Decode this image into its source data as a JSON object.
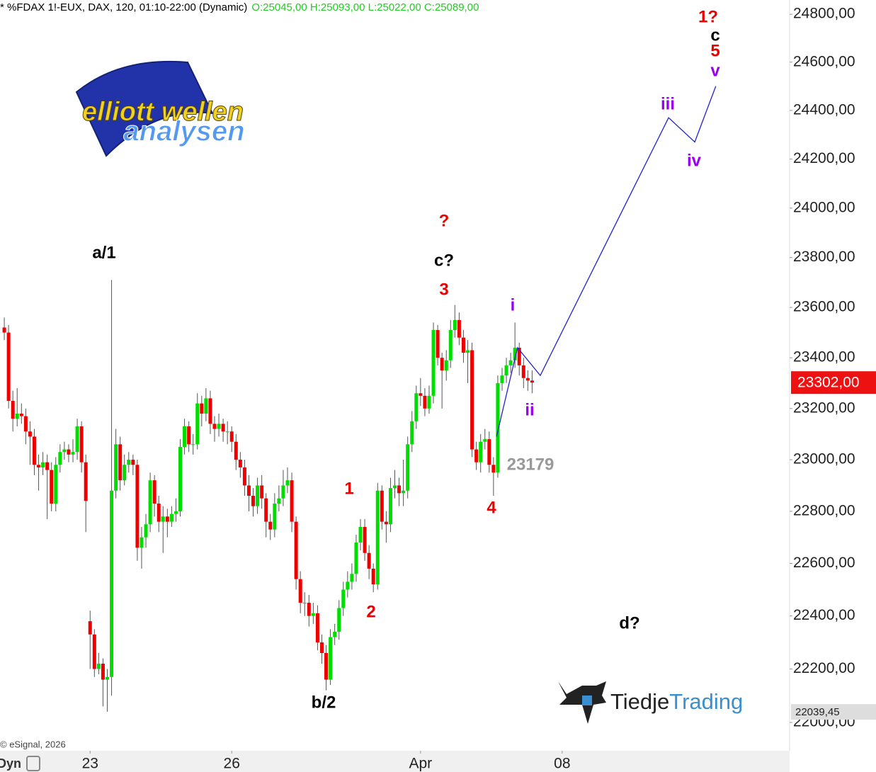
{
  "chart_data": {
    "type": "candlestick",
    "header": "* %FDAX 1!-EUX, DAX, 120, 01:10-22:00 (Dynamic)",
    "ohlc_text": "O:25045,00 H:25093,00 L:25022,00 C:25089,00",
    "source": "© eSignal, 2026",
    "mode": "Dyn",
    "log_scale": true,
    "up_color": "#00dd00",
    "down_color": "#ee0000",
    "xlim": [
      -1,
      183
    ],
    "xticks": [
      {
        "value": 20,
        "label": "23"
      },
      {
        "value": 53,
        "label": "26"
      },
      {
        "value": 97,
        "label": "Apr"
      },
      {
        "value": 130,
        "label": "08"
      }
    ],
    "ylim": [
      21895,
      24860
    ],
    "yticks": [
      {
        "value": 22000,
        "label": "22000,00"
      },
      {
        "value": 22200,
        "label": "22200,00"
      },
      {
        "value": 22400,
        "label": "22400,00"
      },
      {
        "value": 22600,
        "label": "22600,00"
      },
      {
        "value": 22800,
        "label": "22800,00"
      },
      {
        "value": 23000,
        "label": "23000,00"
      },
      {
        "value": 23200,
        "label": "23200,00"
      },
      {
        "value": 23400,
        "label": "23400,00"
      },
      {
        "value": 23600,
        "label": "23600,00"
      },
      {
        "value": 23800,
        "label": "23800,00"
      },
      {
        "value": 24000,
        "label": "24000,00"
      },
      {
        "value": 24200,
        "label": "24200,00"
      },
      {
        "value": 24400,
        "label": "24400,00"
      },
      {
        "value": 24600,
        "label": "24600,00"
      },
      {
        "value": 24800,
        "label": "24800,00"
      }
    ],
    "open": [
      23520,
      23500,
      23230,
      23160,
      23180,
      23170,
      23110,
      23090,
      22980,
      22970,
      22990,
      22960,
      22830,
      22980,
      23030,
      23040,
      23020,
      23030,
      23130,
      22990,
      22380,
      22330,
      22200,
      22220,
      22160,
      22170,
      22880,
      23060,
      22920,
      22980,
      23000,
      22980,
      22660,
      22700,
      22750,
      22920,
      22830,
      22760,
      22780,
      22760,
      22790,
      22800,
      23050,
      23130,
      23060,
      23060,
      23220,
      23180,
      23240,
      23140,
      23120,
      23140,
      23110,
      23110,
      23070,
      23000,
      22970,
      22900,
      22860,
      22820,
      22900,
      22850,
      22760,
      22730,
      22830,
      22850,
      22900,
      22920,
      22760,
      22540,
      22450,
      22450,
      22400,
      22410,
      22300,
      22260,
      22160,
      22320,
      22340,
      22430,
      22500,
      22530,
      22560,
      22680,
      22740,
      22640,
      22580,
      22520,
      22880,
      22760,
      22750,
      22890,
      22900,
      22870,
      22880,
      23060,
      23150,
      23260,
      23250,
      23200,
      23250,
      23510,
      23400,
      23350,
      23390,
      23510,
      23550,
      23480,
      23420,
      23430,
      23040,
      22990,
      23070,
      23080,
      22980,
      22950,
      23300,
      23330,
      23370,
      23390,
      23440,
      23370,
      23320,
      23310
    ],
    "high": [
      23560,
      23530,
      23270,
      23280,
      23220,
      23200,
      23150,
      23120,
      23020,
      23030,
      23020,
      22990,
      23010,
      23060,
      23070,
      23060,
      23080,
      23160,
      23150,
      23020,
      22420,
      22350,
      22260,
      22240,
      22200,
      23710,
      23120,
      23090,
      23020,
      23030,
      23020,
      23000,
      22740,
      22790,
      22950,
      22940,
      22860,
      22820,
      22810,
      22820,
      22850,
      23080,
      23160,
      23150,
      23100,
      23260,
      23250,
      23280,
      23270,
      23170,
      23180,
      23160,
      23150,
      23130,
      23100,
      23030,
      23000,
      22940,
      22890,
      22930,
      22940,
      22870,
      22790,
      22870,
      22900,
      22960,
      22970,
      22950,
      22780,
      22570,
      22490,
      22480,
      22450,
      22440,
      22330,
      22290,
      22350,
      22370,
      22460,
      22530,
      22570,
      22600,
      22710,
      22770,
      22770,
      22670,
      22600,
      22910,
      22900,
      22800,
      22930,
      22960,
      22930,
      23000,
      23090,
      23190,
      23290,
      23320,
      23280,
      23290,
      23540,
      23530,
      23420,
      23430,
      23550,
      23610,
      23580,
      23510,
      23470,
      23460,
      23070,
      23100,
      23120,
      23110,
      23010,
      23330,
      23360,
      23400,
      23420,
      23540,
      23460,
      23400,
      23350,
      23350
    ],
    "low": [
      23470,
      23200,
      23110,
      23130,
      23140,
      23060,
      22980,
      22940,
      22880,
      22940,
      22770,
      22800,
      22800,
      22950,
      23000,
      22990,
      22990,
      23000,
      22950,
      22720,
      22200,
      22170,
      22180,
      22060,
      22040,
      22100,
      22850,
      22880,
      22900,
      22950,
      22940,
      22610,
      22580,
      22660,
      22720,
      22780,
      22720,
      22640,
      22700,
      22740,
      22760,
      22780,
      23020,
      23030,
      23020,
      23040,
      23130,
      23150,
      23100,
      23070,
      23090,
      23070,
      23060,
      23030,
      22960,
      22930,
      22860,
      22800,
      22780,
      22790,
      22810,
      22700,
      22690,
      22700,
      22800,
      22820,
      22870,
      22720,
      22500,
      22410,
      22400,
      22360,
      22370,
      22270,
      22220,
      22120,
      22140,
      22290,
      22310,
      22400,
      22470,
      22500,
      22530,
      22650,
      22610,
      22540,
      22490,
      22500,
      22730,
      22680,
      22720,
      22850,
      22820,
      22820,
      22850,
      23030,
      23120,
      23210,
      23170,
      23180,
      23220,
      23370,
      23200,
      23310,
      23360,
      23480,
      23450,
      23380,
      23300,
      23010,
      22960,
      22950,
      23040,
      22950,
      22860,
      22930,
      23270,
      23300,
      23340,
      23360,
      23330,
      23280,
      23270,
      23260
    ],
    "close": [
      23500,
      23230,
      23160,
      23180,
      23170,
      23110,
      23090,
      22980,
      22970,
      22990,
      22960,
      22830,
      22980,
      23030,
      23040,
      23020,
      23030,
      23130,
      22990,
      22840,
      22330,
      22200,
      22220,
      22160,
      22170,
      22880,
      23060,
      22920,
      22980,
      23000,
      22980,
      22660,
      22700,
      22750,
      22920,
      22830,
      22760,
      22780,
      22760,
      22790,
      22800,
      23050,
      23130,
      23060,
      23060,
      23220,
      23180,
      23240,
      23140,
      23120,
      23140,
      23110,
      23110,
      23070,
      23000,
      22970,
      22900,
      22860,
      22820,
      22900,
      22850,
      22760,
      22730,
      22830,
      22850,
      22900,
      22920,
      22760,
      22540,
      22450,
      22450,
      22400,
      22410,
      22300,
      22260,
      22160,
      22320,
      22340,
      22430,
      22500,
      22530,
      22560,
      22680,
      22740,
      22640,
      22580,
      22520,
      22880,
      22760,
      22750,
      22890,
      22900,
      22870,
      22880,
      23060,
      23150,
      23260,
      23250,
      23200,
      23250,
      23510,
      23400,
      23350,
      23390,
      23510,
      23550,
      23480,
      23420,
      23430,
      23040,
      22990,
      23070,
      23080,
      22980,
      22950,
      23300,
      23330,
      23370,
      23390,
      23440,
      23370,
      23320,
      23310,
      23302
    ],
    "projection": {
      "color": "#2222cc",
      "x": [
        114.7,
        119.6,
        124.9,
        154.8,
        160.9,
        165.8
      ],
      "values": [
        23090,
        23440,
        23330,
        24370,
        24270,
        24500
      ]
    },
    "price_label": {
      "value": 23302,
      "label": "23302,00",
      "color": "#ee1111"
    },
    "low_label": {
      "value": 22039.45,
      "label": "22039,45"
    },
    "annotations": [
      {
        "text": "a/1",
        "color": "#000000"
      },
      {
        "text": "b/2",
        "color": "#000000"
      },
      {
        "text": "?",
        "color": "#ee0000"
      },
      {
        "text": "c?",
        "color": "#000000"
      },
      {
        "text": "3",
        "color": "#ee0000"
      },
      {
        "text": "1",
        "color": "#ee0000"
      },
      {
        "text": "2",
        "color": "#ee0000"
      },
      {
        "text": "4",
        "color": "#ee0000"
      },
      {
        "text": "i",
        "color": "#9900ee"
      },
      {
        "text": "ii",
        "color": "#9900ee"
      },
      {
        "text": "iii",
        "color": "#9900ee"
      },
      {
        "text": "iv",
        "color": "#9900ee"
      },
      {
        "text": "v",
        "color": "#9900ee"
      },
      {
        "text": "5",
        "color": "#ee0000"
      },
      {
        "text": "c",
        "color": "#000000"
      },
      {
        "text": "1?",
        "color": "#ee0000"
      },
      {
        "text": "d?",
        "color": "#000000"
      },
      {
        "text": "23179",
        "color": "#999999"
      }
    ],
    "logo_left": {
      "line1": "elliott wellen",
      "line2": "analysen"
    },
    "logo_right": {
      "part1": "Tiedje",
      "part2": "Trading"
    }
  }
}
